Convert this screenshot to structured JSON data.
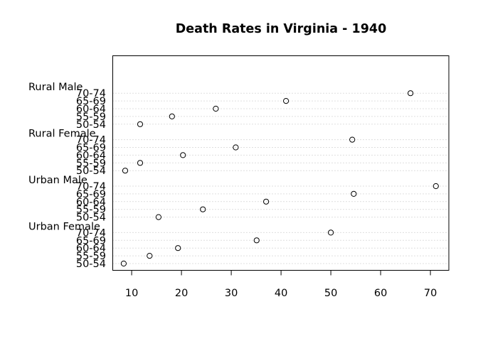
{
  "chart_data": {
    "type": "scatter",
    "title": "Death Rates in Virginia - 1940",
    "xlabel": "",
    "ylabel": "",
    "xlim": [
      6.2,
      73.7
    ],
    "xticks": [
      10,
      20,
      30,
      40,
      50,
      60,
      70
    ],
    "grid": "dotted horizontal guide per row",
    "marker": "open circle",
    "groups": [
      {
        "name": "Rural Male",
        "rows": [
          {
            "label": "50-54",
            "value": 11.7
          },
          {
            "label": "55-59",
            "value": 18.1
          },
          {
            "label": "60-64",
            "value": 26.9
          },
          {
            "label": "65-69",
            "value": 41.0
          },
          {
            "label": "70-74",
            "value": 66.0
          }
        ]
      },
      {
        "name": "Rural Female",
        "rows": [
          {
            "label": "50-54",
            "value": 8.7
          },
          {
            "label": "55-59",
            "value": 11.7
          },
          {
            "label": "60-64",
            "value": 20.3
          },
          {
            "label": "65-69",
            "value": 30.9
          },
          {
            "label": "70-74",
            "value": 54.3
          }
        ]
      },
      {
        "name": "Urban Male",
        "rows": [
          {
            "label": "50-54",
            "value": 15.4
          },
          {
            "label": "55-59",
            "value": 24.3
          },
          {
            "label": "60-64",
            "value": 37.0
          },
          {
            "label": "65-69",
            "value": 54.6
          },
          {
            "label": "70-74",
            "value": 71.1
          }
        ]
      },
      {
        "name": "Urban Female",
        "rows": [
          {
            "label": "50-54",
            "value": 8.4
          },
          {
            "label": "55-59",
            "value": 13.6
          },
          {
            "label": "60-64",
            "value": 19.3
          },
          {
            "label": "65-69",
            "value": 35.1
          },
          {
            "label": "70-74",
            "value": 50.0
          }
        ]
      }
    ]
  }
}
